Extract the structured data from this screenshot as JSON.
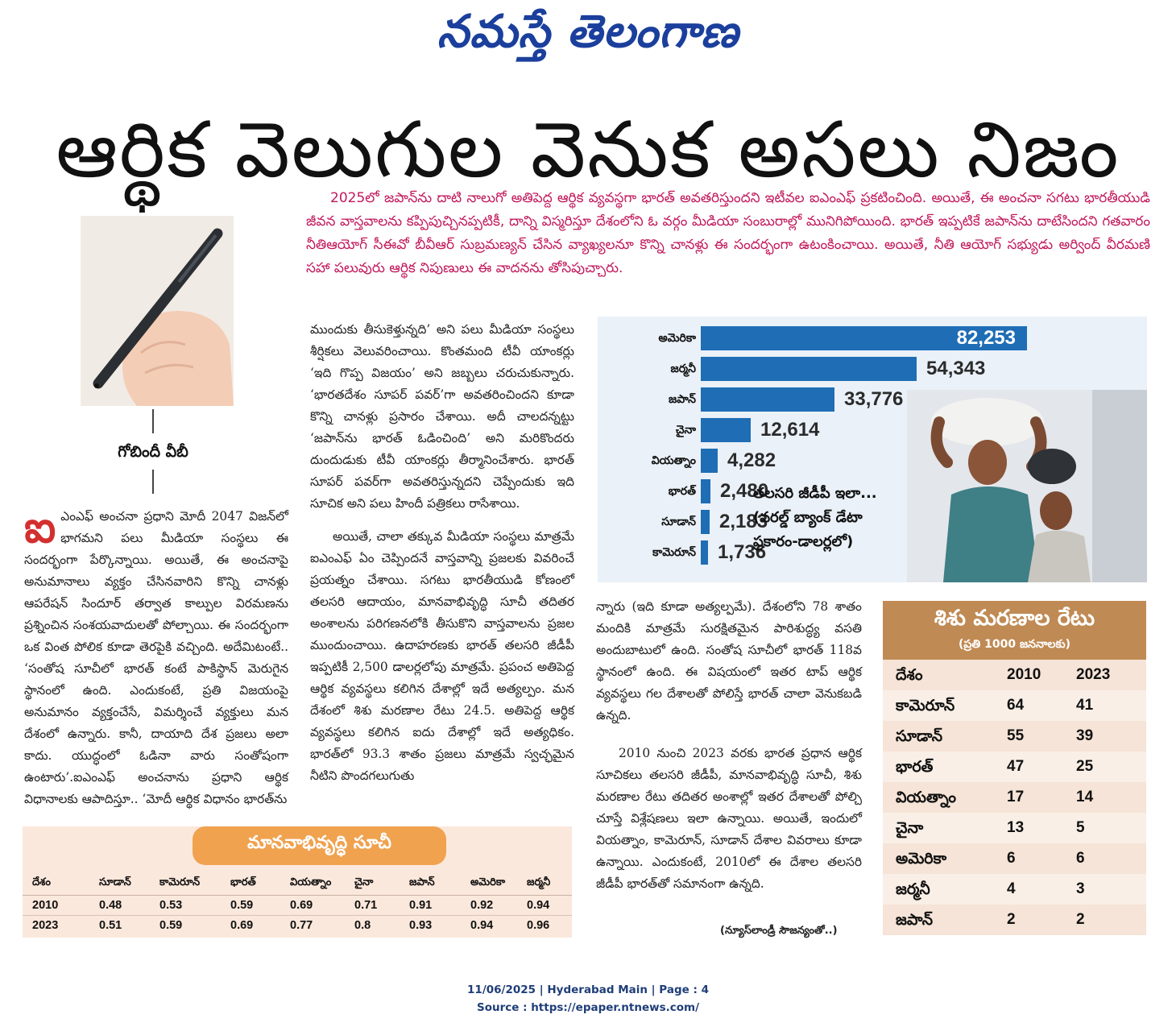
{
  "masthead": "నమస్తే తెలంగాణ",
  "headline": "ఆర్థిక వెలుగుల వెనుక అసలు నిజం",
  "byline": "గోబిందీ వీబీ",
  "intro": "2025లో జపాన్‌ను దాటి నాలుగో అతిపెద్ద ఆర్థిక వ్యవస్థగా భారత్ అవతరిస్తుందని ఇటీవల ఐఎంఎఫ్ ప్రకటించింది. అయితే, ఈ అంచనా సగటు భారతీయుడి జీవన వాస్తవాలను కప్పిపుచ్చినప్పటికీ, దాన్ని విస్మరిస్తూ దేశంలోని ఓ వర్గం మీడియా సంబురాల్లో మునిగిపోయింది. భారత్ ఇప్పటికే జపాన్‌ను దాటేసిందని గతవారం నీతిఆయోగ్ సీఈవో బీవీఆర్ సుబ్రమణ్యన్ చేసిన వ్యాఖ్యలనూ కొన్ని చానళ్లు ఈ సందర్భంగా ఉటంకించాయి. అయితే, నీతి ఆయోగ్ సభ్యుడు అర్వింద్ వీరమణి సహా పలువురు ఆర్థిక నిపుణులు ఈ వాదనను తోసిపుచ్చారు.",
  "col1": {
    "dropcap": "ఐ",
    "p1": "ఎంఎఫ్ అంచనా ప్రధాని మోదీ 2047 విజన్‌లో భాగమని పలు మీడియా సంస్థలు ఈ సందర్భంగా పేర్కొన్నాయి. అయితే, ఈ అంచనాపై అనుమానాలు వ్యక్తం చేసినవారిని కొన్ని చానళ్లు ఆపరేషన్ సిందూర్ తర్వాత కాల్పుల విరమణను ప్రశ్నించిన సంశయవాదులతో పోల్చాయి. ఈ సందర్భంగా ఒక వింత పోలిక కూడా తెరపైకి వచ్చింది. అదేమిటంటే.. ‘సంతోష సూచీలో భారత్ కంటే పాకిస్థాన్ మెరుగైన స్థానంలో ఉంది. ఎందుకంటే, ప్రతి విజయంపై అనుమానం వ్యక్తంచేసే, విమర్శించే వ్యక్తులు మన దేశంలో ఉన్నారు. కానీ, దాయాది దేశ ప్రజలు అలా కాదు. యుద్ధంలో ఓడినా వారు సంతోషంగా ఉంటారు’.ఐఎంఎఫ్ అంచనాను ప్రధాని ఆర్థిక విధానాలకు ఆపాదిస్తూ.. ‘మోదీ ఆర్థిక విధానం భారత్‌ను"
  },
  "col2": {
    "p1": "ముందుకు తీసుకెళ్తున్నది’ అని పలు మీడియా సంస్థలు శీర్షికలు వెలువరించాయి. కొంతమంది టీవీ యాంకర్లు ‘ఇది గొప్ప విజయం’ అని జబ్బలు చరుచుకున్నారు. ‘భారతదేశం సూపర్ పవర్’గా అవతరించిందని కూడా కొన్ని చానళ్లు ప్రసారం చేశాయి. అదీ చాలదన్నట్టు ‘జపాన్‌ను భారత్ ఓడించింది’ అని మరికొందరు దుందుడుకు టీవీ యాంకర్లు తీర్మానించేశారు. భారత్ సూపర్ పవర్‌గా అవతరిస్తున్నదని చెప్పేందుకు ఇది సూచిక అని పలు హిందీ పత్రికలు రాసేశాయి.",
    "p2": "అయితే, చాలా తక్కువ మీడియా సంస్థలు మాత్రమే ఐఎంఎఫ్ ఏం చెప్పిందనే వాస్తవాన్ని ప్రజలకు వివరించే ప్రయత్నం చేశాయి. సగటు భారతీయుడి కోణంలో తలసరి ఆదాయం, మానవాభివృద్ధి సూచీ తదితర అంశాలను పరిగణనలోకి తీసుకొని వాస్తవాలను ప్రజల ముందుంచాయి. ఉదాహరణకు భారత్ తలసరి జీడీపీ ఇప్పటికీ 2,500 డాలర్లలోపు మాత్రమే. ప్రపంచ అతిపెద్ద ఆర్థిక వ్యవస్థలు కలిగిన దేశాల్లో ఇదే అత్యల్పం. మన దేశంలో శిశు మరణాల రేటు 24.5. అతిపెద్ద ఆర్థిక వ్యవస్థలు కలిగిన ఐదు దేశాల్లో ఇదే అత్యధికం. భారత్‌లో 93.3 శాతం ప్రజలు మాత్రమే స్వచ్ఛమైన నీటిని పొందగలుగుతు"
  },
  "col3": {
    "p1": "న్నారు (ఇది కూడా అత్యల్పమే). దేశంలోని 78 శాతం మందికి మాత్రమే సురక్షితమైన పారిశుద్ధ్య వసతి అందుబాటులో ఉంది. సంతోష సూచీలో భారత్ 118వ స్థానంలో ఉంది. ఈ విషయంలో ఇతర టాప్ ఆర్థిక వ్యవస్థలు గల దేశాలతో పోలిస్తే భారత్ చాలా వెనుకబడి ఉన్నది.",
    "p2": "2010 నుంచి 2023 వరకు భారత ప్రధాన ఆర్థిక సూచికలు తలసరి జీడీపీ, మానవాభివృద్ధి సూచీ, శిశు మరణాల రేటు తదితర అంశాల్లో ఇతర దేశాలతో పోల్చి చూస్తే విశ్లేషణలు ఇలా ఉన్నాయి. అయితే, ఇందులో వియత్నాం, కామెరూన్, సూడాన్ దేశాల వివరాలు కూడా ఉన్నాయి. ఎందుకంటే, 2010లో ఈ దేశాల తలసరి జీడీపీ భారత్‌తో సమానంగా ఉన్నది."
  },
  "credit": "(న్యూస్‌లాండ్రీ సౌజన్యంతో..)",
  "chart_data": [
    {
      "type": "bar",
      "orientation": "horizontal",
      "categories": [
        "అమెరికా",
        "జర్మనీ",
        "జపాన్",
        "చైనా",
        "వియత్నాం",
        "భారత్",
        "సూడాన్",
        "కామెరూన్"
      ],
      "values": [
        82253,
        54343,
        33776,
        12614,
        4282,
        2480,
        2183,
        1736
      ],
      "value_labels": [
        "82,253",
        "54,343",
        "33,776",
        "12,614",
        "4,282",
        "2,480",
        "2,183",
        "1,736"
      ],
      "max": 82253,
      "caption": "తలసరి జీడీపీ ఇలా... (వరల్డ్ బ్యాంక్ డేటా ప్రకారం-డాలర్లలో)",
      "colors": {
        "bar": "#1f6db5",
        "panel": "#eaf1f8"
      }
    },
    {
      "type": "table",
      "title": "శిశు మరణాల రేటు",
      "subtitle": "(ప్రతి 1000 జననాలకు)",
      "columns": [
        "దేశం",
        "2010",
        "2023"
      ],
      "rows": [
        [
          "కామెరూన్",
          "64",
          "41"
        ],
        [
          "సూడాన్",
          "55",
          "39"
        ],
        [
          "భారత్",
          "47",
          "25"
        ],
        [
          "వియత్నాం",
          "17",
          "14"
        ],
        [
          "చైనా",
          "13",
          "5"
        ],
        [
          "అమెరికా",
          "6",
          "6"
        ],
        [
          "జర్మనీ",
          "4",
          "3"
        ],
        [
          "జపాన్",
          "2",
          "2"
        ]
      ],
      "colors": {
        "header": "#c08a54",
        "body": "#f5e4d7"
      }
    },
    {
      "type": "table",
      "title": "మానవాభివృద్ధి సూచీ",
      "columns": [
        "దేశం",
        "సూడాన్",
        "కామెరూన్",
        "భారత్",
        "వియత్నాం",
        "చైనా",
        "జపాన్",
        "అమెరికా",
        "జర్మనీ"
      ],
      "rows": [
        [
          "2010",
          "0.48",
          "0.53",
          "0.59",
          "0.69",
          "0.71",
          "0.91",
          "0.92",
          "0.94"
        ],
        [
          "2023",
          "0.51",
          "0.59",
          "0.69",
          "0.77",
          "0.8",
          "0.93",
          "0.94",
          "0.96"
        ]
      ],
      "colors": {
        "title": "#f0a24f",
        "body": "#fbe8dc"
      }
    }
  ],
  "footer": {
    "line1": "11/06/2025 | Hyderabad Main | Page : 4",
    "line2": "Source : https://epaper.ntnews.com/"
  },
  "images": {
    "pen_photo": "hand-holding-pen-photo",
    "workers_photo": "workers-carrying-sacks-photo"
  }
}
